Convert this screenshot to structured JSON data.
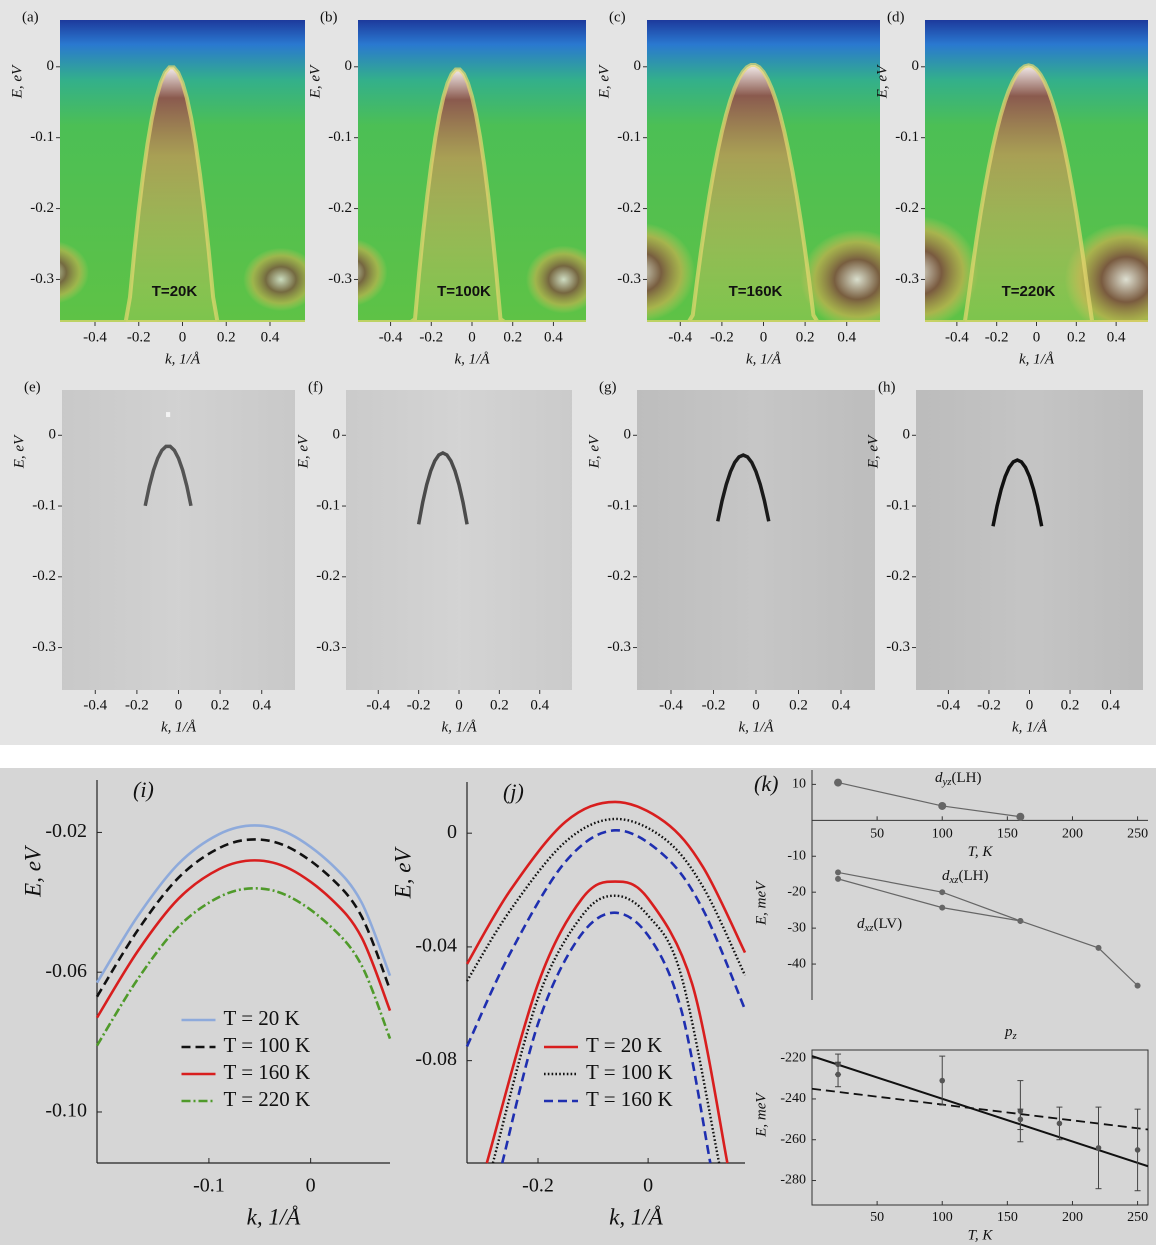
{
  "chart_data": [
    {
      "type": "heatmap",
      "panel": "(a)",
      "annotation": "T=20K",
      "colormap": "spectral",
      "xlabel": "k, 1/Å",
      "ylabel": "E, eV",
      "xlim": [
        -0.56,
        0.56
      ],
      "ylim": [
        -0.36,
        0.066
      ],
      "xticks": [
        -0.4,
        -0.2,
        0,
        0.2,
        0.4
      ],
      "yticks": [
        0,
        -0.1,
        -0.2,
        -0.3
      ]
    },
    {
      "type": "heatmap",
      "panel": "(b)",
      "annotation": "T=100K",
      "colormap": "spectral",
      "xlabel": "k, 1/Å",
      "ylabel": "E, eV",
      "xlim": [
        -0.56,
        0.56
      ],
      "ylim": [
        -0.36,
        0.066
      ],
      "xticks": [
        -0.4,
        -0.2,
        0,
        0.2,
        0.4
      ],
      "yticks": [
        0,
        -0.1,
        -0.2,
        -0.3
      ]
    },
    {
      "type": "heatmap",
      "panel": "(c)",
      "annotation": "T=160K",
      "colormap": "spectral",
      "xlabel": "k, 1/Å",
      "ylabel": "E, eV",
      "xlim": [
        -0.56,
        0.56
      ],
      "ylim": [
        -0.36,
        0.066
      ],
      "xticks": [
        -0.4,
        -0.2,
        0,
        0.2,
        0.4
      ],
      "yticks": [
        0,
        -0.1,
        -0.2,
        -0.3
      ]
    },
    {
      "type": "heatmap",
      "panel": "(d)",
      "annotation": "T=220K",
      "colormap": "spectral",
      "xlabel": "k, 1/Å",
      "ylabel": "E, eV",
      "xlim": [
        -0.56,
        0.56
      ],
      "ylim": [
        -0.36,
        0.066
      ],
      "xticks": [
        -0.4,
        -0.2,
        0,
        0.2,
        0.4
      ],
      "yticks": [
        0,
        -0.1,
        -0.2,
        -0.3
      ]
    },
    {
      "type": "heatmap",
      "panel": "(e)",
      "colormap": "gray",
      "xlabel": "k, 1/Å",
      "ylabel": "E, eV",
      "xlim": [
        -0.56,
        0.56
      ],
      "ylim": [
        -0.36,
        0.064
      ],
      "xticks": [
        -0.4,
        -0.2,
        0,
        0.2,
        0.4
      ],
      "yticks": [
        0,
        -0.1,
        -0.2,
        -0.3
      ]
    },
    {
      "type": "heatmap",
      "panel": "(f)",
      "colormap": "gray",
      "xlabel": "k, 1/Å",
      "ylabel": "E, eV",
      "xlim": [
        -0.56,
        0.56
      ],
      "ylim": [
        -0.36,
        0.064
      ],
      "xticks": [
        -0.4,
        -0.2,
        0,
        0.2,
        0.4
      ],
      "yticks": [
        0,
        -0.1,
        -0.2,
        -0.3
      ]
    },
    {
      "type": "heatmap",
      "panel": "(g)",
      "colormap": "gray",
      "xlabel": "k, 1/Å",
      "ylabel": "E, eV",
      "xlim": [
        -0.56,
        0.56
      ],
      "ylim": [
        -0.36,
        0.064
      ],
      "xticks": [
        -0.4,
        -0.2,
        0,
        0.2,
        0.4
      ],
      "yticks": [
        0,
        -0.1,
        -0.2,
        -0.3
      ]
    },
    {
      "type": "heatmap",
      "panel": "(h)",
      "colormap": "gray",
      "xlabel": "k, 1/Å",
      "ylabel": "E, eV",
      "xlim": [
        -0.56,
        0.56
      ],
      "ylim": [
        -0.36,
        0.064
      ],
      "xticks": [
        -0.4,
        -0.2,
        0,
        0.2,
        0.4
      ],
      "yticks": [
        0,
        -0.1,
        -0.2,
        -0.3
      ]
    },
    {
      "type": "line",
      "panel": "(i)",
      "xlabel": "k, 1/Å",
      "ylabel": "E, eV",
      "xlim": [
        -0.21,
        0.078
      ],
      "ylim": [
        -0.1146,
        -0.005
      ],
      "xticks": [
        -0.1,
        0
      ],
      "yticks": [
        -0.02,
        -0.06,
        {
          "value": -0.1,
          "label": "-0.10"
        }
      ],
      "legend": "lower center",
      "x": [
        -0.21,
        -0.17,
        -0.13,
        -0.09,
        -0.055,
        -0.02,
        0.02,
        0.05,
        0.078
      ],
      "series": [
        {
          "name": "T = 20 K",
          "color": "#8eaadb",
          "dash": "solid",
          "values": [
            -0.063,
            -0.044,
            -0.029,
            -0.0205,
            -0.018,
            -0.0205,
            -0.029,
            -0.04,
            -0.061
          ]
        },
        {
          "name": "T = 100 K",
          "color": "#111111",
          "dash": "dashed",
          "values": [
            -0.067,
            -0.048,
            -0.033,
            -0.0245,
            -0.022,
            -0.0245,
            -0.033,
            -0.044,
            -0.065
          ]
        },
        {
          "name": "T = 160 K",
          "color": "#d81e1e",
          "dash": "solid",
          "values": [
            -0.073,
            -0.054,
            -0.039,
            -0.0305,
            -0.028,
            -0.0305,
            -0.039,
            -0.05,
            -0.071
          ]
        },
        {
          "name": "T = 220 K",
          "color": "#4f9a2a",
          "dash": "dashdot",
          "values": [
            -0.081,
            -0.062,
            -0.047,
            -0.0385,
            -0.036,
            -0.0385,
            -0.047,
            -0.058,
            -0.079
          ]
        }
      ]
    },
    {
      "type": "line",
      "panel": "(j)",
      "xlabel": "k, 1/Å",
      "ylabel": "E, eV",
      "xlim": [
        -0.329,
        0.176
      ],
      "ylim": [
        -0.116,
        0.018
      ],
      "xticks": [
        -0.2,
        0
      ],
      "yticks": [
        0,
        -0.04,
        -0.08
      ],
      "legend": "lower center",
      "series": [
        {
          "name": "T = 20 K",
          "color": "#d81e1e",
          "dash": "solid",
          "branches": [
            {
              "x": [
                -0.329,
                -0.25,
                -0.15,
                -0.06,
                0.03,
                0.1,
                0.176
              ],
              "values": [
                -0.046,
                -0.02,
                0.004,
                0.011,
                0.004,
                -0.012,
                -0.042
              ]
            },
            {
              "x": [
                -0.293,
                -0.2,
                -0.12,
                -0.06,
                0,
                0.08,
                0.144
              ],
              "values": [
                -0.116,
                -0.053,
                -0.023,
                -0.017,
                -0.023,
                -0.053,
                -0.116
              ]
            }
          ]
        },
        {
          "name": "T = 100 K",
          "color": "#111111",
          "dash": "dotted",
          "branches": [
            {
              "x": [
                -0.329,
                -0.25,
                -0.15,
                -0.06,
                0.03,
                0.1,
                0.176
              ],
              "values": [
                -0.052,
                -0.027,
                -0.003,
                0.005,
                -0.002,
                -0.019,
                -0.05
              ]
            },
            {
              "x": [
                -0.282,
                -0.2,
                -0.12,
                -0.06,
                0,
                0.06,
                0.129
              ],
              "values": [
                -0.116,
                -0.058,
                -0.029,
                -0.022,
                -0.029,
                -0.05,
                -0.116
              ]
            }
          ]
        },
        {
          "name": "T = 160 K",
          "color": "#1f2fb0",
          "dash": "dashed",
          "branches": [
            {
              "x": [
                -0.329,
                -0.25,
                -0.15,
                -0.06,
                0.03,
                0.1,
                0.176
              ],
              "values": [
                -0.075,
                -0.042,
                -0.01,
                0.001,
                -0.008,
                -0.027,
                -0.062
              ]
            },
            {
              "x": [
                -0.265,
                -0.2,
                -0.13,
                -0.065,
                0,
                0.06,
                0.113
              ],
              "values": [
                -0.116,
                -0.067,
                -0.038,
                -0.028,
                -0.036,
                -0.062,
                -0.116
              ]
            }
          ]
        }
      ]
    },
    {
      "type": "scatter-line",
      "panel": "(k)",
      "xlabel": "T, K",
      "ylabel": "E, meV",
      "xlim": [
        0,
        258
      ],
      "ylim": [
        -50,
        14
      ],
      "xticks": [
        50,
        100,
        150,
        200,
        250
      ],
      "yticks": [
        10,
        -10,
        -20,
        -30,
        -40
      ],
      "color": "#666666",
      "series": [
        {
          "label": {
            "text": "d",
            "sub": "yz",
            "suffix": "(LH)"
          },
          "x": [
            20,
            100,
            160
          ],
          "values": [
            10.5,
            4,
            1
          ]
        },
        {
          "label": {
            "text": "d",
            "sub": "xz",
            "suffix": "(LH)"
          },
          "x": [
            20,
            100,
            160,
            220,
            250
          ],
          "values": [
            -14.5,
            -20,
            -28,
            -35.5,
            -46
          ]
        },
        {
          "label": {
            "text": "d",
            "sub": "xz",
            "suffix": "(LV)"
          },
          "x": [
            20,
            100,
            160
          ],
          "values": [
            -16.3,
            -24.3,
            -28
          ]
        }
      ]
    },
    {
      "type": "errorbar",
      "annotation": {
        "text": "p",
        "sub": "z"
      },
      "xlabel": "T, K",
      "ylabel": "E, meV",
      "xlim": [
        0,
        258
      ],
      "ylim": [
        -292,
        -216
      ],
      "xticks": [
        50,
        100,
        150,
        200,
        250
      ],
      "yticks": [
        -220,
        -240,
        -260,
        -280
      ],
      "color": "#111111",
      "points": {
        "x": [
          20,
          20,
          100,
          160,
          160,
          190,
          220,
          250
        ],
        "values": [
          -223,
          -228,
          -231,
          -246,
          -250,
          -252,
          -264,
          -265
        ],
        "errors": [
          5,
          6,
          12,
          15,
          5,
          8,
          20,
          20
        ]
      },
      "fits": [
        {
          "dash": "solid",
          "x": [
            0,
            258
          ],
          "values": [
            -219,
            -273
          ]
        },
        {
          "dash": "dashed",
          "x": [
            0,
            258
          ],
          "values": [
            -235,
            -255
          ]
        }
      ]
    }
  ]
}
